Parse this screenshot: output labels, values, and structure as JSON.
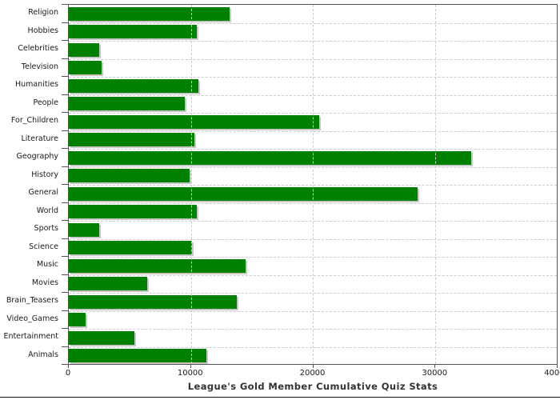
{
  "title": "League's Gold Member Cumulative Quiz Stats",
  "colors": {
    "bar_fill": "#008000",
    "bar_shadow": "#c8c8c8",
    "gridline": "#cccccc",
    "axis_line": "#555555",
    "label_text": "#1a1a1a",
    "title_text": "#333333"
  },
  "chart_data": {
    "type": "bar",
    "orientation": "horizontal",
    "title": "League's Gold Member Cumulative Quiz Stats",
    "categories": [
      "Religion",
      "Hobbies",
      "Celebrities",
      "Television",
      "Humanities",
      "People",
      "For_Children",
      "Literature",
      "Geography",
      "History",
      "General",
      "World",
      "Sports",
      "Science",
      "Music",
      "Movies",
      "Brain_Teasers",
      "Video_Games",
      "Entertainment",
      "Animals"
    ],
    "values": [
      13200,
      10500,
      2500,
      2700,
      10600,
      9500,
      20500,
      10300,
      33000,
      9900,
      28600,
      10500,
      2500,
      10100,
      14500,
      6400,
      13800,
      1400,
      5400,
      11300
    ],
    "xlabel": "",
    "ylabel": "",
    "xlim": [
      0,
      40000
    ],
    "xticks": [
      0,
      10000,
      20000,
      30000,
      40000
    ],
    "xtick_labels": [
      "0",
      "10000",
      "20000",
      "30000",
      "40000"
    ],
    "grid": true,
    "legend": false,
    "title_position": "bottom"
  }
}
